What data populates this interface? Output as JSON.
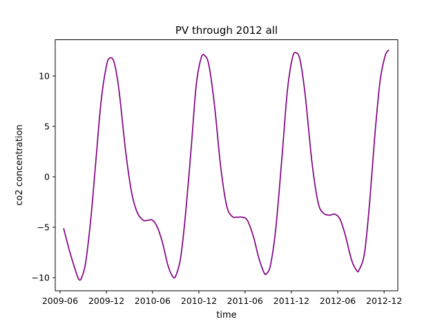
{
  "chart_data": {
    "type": "line",
    "title": "PV through 2012 all",
    "xlabel": "time",
    "ylabel": "co2 concentration",
    "xlim": [
      "2009-05-13",
      "2013-01-24"
    ],
    "ylim": [
      -11.3,
      13.6
    ],
    "x_ticks": [
      "2009-06",
      "2009-12",
      "2010-06",
      "2010-12",
      "2011-06",
      "2011-12",
      "2012-06",
      "2012-12"
    ],
    "y_ticks": [
      -10,
      -5,
      0,
      5,
      10
    ],
    "grid": false,
    "legend": "none",
    "series": [
      {
        "color": "#800080",
        "points": [
          [
            "2009-06-15",
            -5.1
          ],
          [
            "2009-07-10",
            -7.5
          ],
          [
            "2009-08-05",
            -9.6
          ],
          [
            "2009-08-15",
            -10.2
          ],
          [
            "2009-08-25",
            -10.0
          ],
          [
            "2009-09-10",
            -8.5
          ],
          [
            "2009-10-01",
            -4.0
          ],
          [
            "2009-10-20",
            1.5
          ],
          [
            "2009-11-10",
            7.5
          ],
          [
            "2009-12-01",
            11.0
          ],
          [
            "2009-12-15",
            11.8
          ],
          [
            "2010-01-01",
            11.3
          ],
          [
            "2010-01-20",
            8.5
          ],
          [
            "2010-02-15",
            2.5
          ],
          [
            "2010-03-10",
            -1.5
          ],
          [
            "2010-04-01",
            -3.5
          ],
          [
            "2010-04-25",
            -4.3
          ],
          [
            "2010-05-15",
            -4.3
          ],
          [
            "2010-06-01",
            -4.3
          ],
          [
            "2010-06-20",
            -5.0
          ],
          [
            "2010-07-10",
            -6.5
          ],
          [
            "2010-08-01",
            -8.8
          ],
          [
            "2010-08-20",
            -9.9
          ],
          [
            "2010-09-01",
            -9.8
          ],
          [
            "2010-09-20",
            -8.0
          ],
          [
            "2010-10-10",
            -3.5
          ],
          [
            "2010-11-01",
            3.0
          ],
          [
            "2010-11-20",
            9.0
          ],
          [
            "2010-12-10",
            11.8
          ],
          [
            "2010-12-25",
            12.0
          ],
          [
            "2011-01-10",
            11.0
          ],
          [
            "2011-02-01",
            7.0
          ],
          [
            "2011-02-25",
            1.0
          ],
          [
            "2011-03-20",
            -2.8
          ],
          [
            "2011-04-10",
            -3.9
          ],
          [
            "2011-05-01",
            -4.0
          ],
          [
            "2011-05-20",
            -4.0
          ],
          [
            "2011-06-10",
            -4.3
          ],
          [
            "2011-07-05",
            -6.0
          ],
          [
            "2011-07-25",
            -8.0
          ],
          [
            "2011-08-15",
            -9.5
          ],
          [
            "2011-08-25",
            -9.6
          ],
          [
            "2011-09-10",
            -8.7
          ],
          [
            "2011-10-01",
            -5.0
          ],
          [
            "2011-10-25",
            2.0
          ],
          [
            "2011-11-15",
            8.5
          ],
          [
            "2011-12-05",
            11.8
          ],
          [
            "2011-12-20",
            12.3
          ],
          [
            "2012-01-05",
            11.5
          ],
          [
            "2012-01-25",
            8.0
          ],
          [
            "2012-02-20",
            1.5
          ],
          [
            "2012-03-15",
            -2.5
          ],
          [
            "2012-04-05",
            -3.6
          ],
          [
            "2012-05-01",
            -3.8
          ],
          [
            "2012-05-20",
            -3.7
          ],
          [
            "2012-06-10",
            -4.2
          ],
          [
            "2012-07-01",
            -5.8
          ],
          [
            "2012-07-25",
            -8.2
          ],
          [
            "2012-08-15",
            -9.3
          ],
          [
            "2012-08-25",
            -9.2
          ],
          [
            "2012-09-15",
            -7.5
          ],
          [
            "2012-10-05",
            -2.5
          ],
          [
            "2012-10-25",
            4.0
          ],
          [
            "2012-11-15",
            9.5
          ],
          [
            "2012-12-05",
            12.0
          ],
          [
            "2012-12-20",
            12.6
          ]
        ]
      }
    ]
  }
}
